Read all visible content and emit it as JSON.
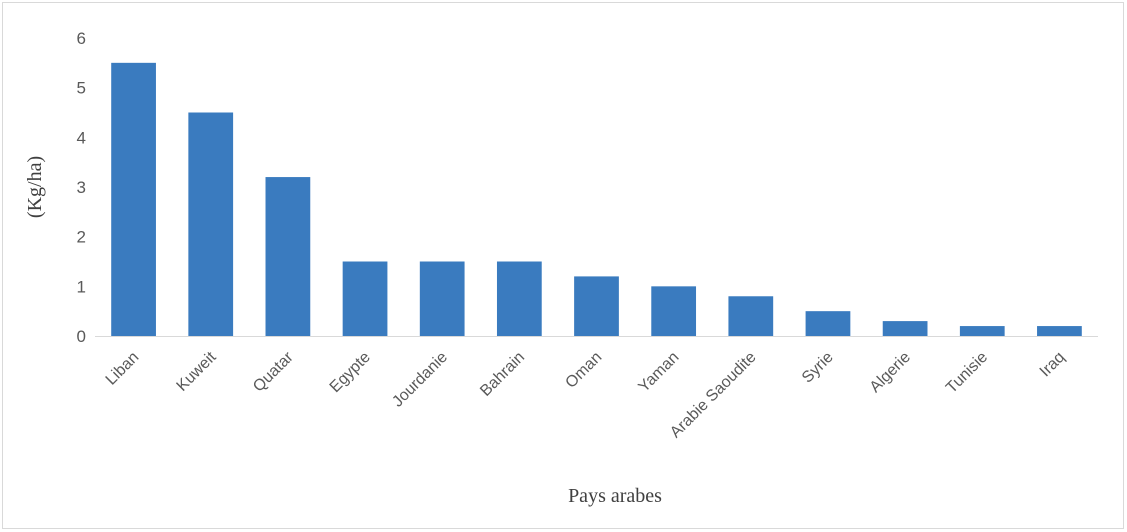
{
  "chart_data": {
    "type": "bar",
    "title": "",
    "xlabel": "Pays arabes",
    "ylabel": "(Kg/ha)",
    "categories": [
      "Liban",
      "Kuweit",
      "Quatar",
      "Egypte",
      "Jourdanie",
      "Bahrain",
      "Oman",
      "Yaman",
      "Arabie Saoudite",
      "Syrie",
      "Algerie",
      "Tunisie",
      "Iraq"
    ],
    "values": [
      5.5,
      4.5,
      3.2,
      1.5,
      1.5,
      1.5,
      1.2,
      1.0,
      0.8,
      0.5,
      0.3,
      0.2,
      0.2
    ],
    "ylim": [
      0,
      6
    ],
    "yticks": [
      "0",
      "1",
      "2",
      "3",
      "4",
      "5",
      "6"
    ],
    "grid": false,
    "legend": "none",
    "bar_color": "#3a7bbf"
  }
}
